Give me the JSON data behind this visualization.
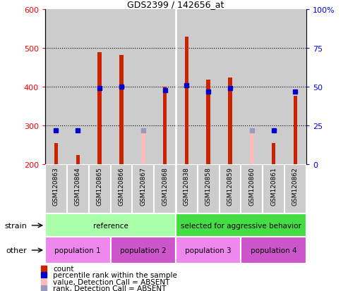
{
  "title": "GDS2399 / 142656_at",
  "samples": [
    "GSM120863",
    "GSM120864",
    "GSM120865",
    "GSM120866",
    "GSM120867",
    "GSM120868",
    "GSM120838",
    "GSM120858",
    "GSM120859",
    "GSM120860",
    "GSM120861",
    "GSM120862"
  ],
  "count_values": [
    255,
    224,
    490,
    482,
    null,
    400,
    530,
    418,
    424,
    null,
    255,
    377
  ],
  "absent_value_bars": [
    null,
    null,
    null,
    null,
    285,
    null,
    null,
    null,
    null,
    278,
    null,
    null
  ],
  "percentile_rank": [
    22,
    22,
    49,
    50,
    null,
    48,
    51,
    47,
    49,
    null,
    22,
    47
  ],
  "absent_rank_bars": [
    null,
    null,
    null,
    null,
    22,
    null,
    null,
    null,
    null,
    22,
    null,
    null
  ],
  "count_base": 200,
  "ylim_left": [
    200,
    600
  ],
  "ylim_right": [
    0,
    100
  ],
  "yticks_left": [
    200,
    300,
    400,
    500,
    600
  ],
  "yticks_right": [
    0,
    25,
    50,
    75,
    100
  ],
  "ytick_right_labels": [
    "0",
    "25",
    "50",
    "75",
    "100%"
  ],
  "bar_color_red": "#cc2200",
  "bar_color_pink": "#ffbbbb",
  "dot_color_blue": "#0000cc",
  "dot_color_lightblue": "#9999bb",
  "strain_groups": [
    {
      "label": "reference",
      "color": "#aaffaa",
      "start": 0,
      "end": 6
    },
    {
      "label": "selected for aggressive behavior",
      "color": "#44dd44",
      "start": 6,
      "end": 12
    }
  ],
  "other_groups": [
    {
      "label": "population 1",
      "color": "#ee88ee",
      "start": 0,
      "end": 3
    },
    {
      "label": "population 2",
      "color": "#cc55cc",
      "start": 3,
      "end": 6
    },
    {
      "label": "population 3",
      "color": "#ee88ee",
      "start": 6,
      "end": 9
    },
    {
      "label": "population 4",
      "color": "#cc55cc",
      "start": 9,
      "end": 12
    }
  ],
  "col_bg_color": "#cccccc",
  "separator_color": "#ffffff",
  "grid_color": "#000000",
  "legend_items": [
    {
      "label": "count",
      "color": "#cc2200"
    },
    {
      "label": "percentile rank within the sample",
      "color": "#0000cc"
    },
    {
      "label": "value, Detection Call = ABSENT",
      "color": "#ffbbbb"
    },
    {
      "label": "rank, Detection Call = ABSENT",
      "color": "#9999bb"
    }
  ],
  "fig_width": 4.93,
  "fig_height": 4.14,
  "dpi": 100
}
